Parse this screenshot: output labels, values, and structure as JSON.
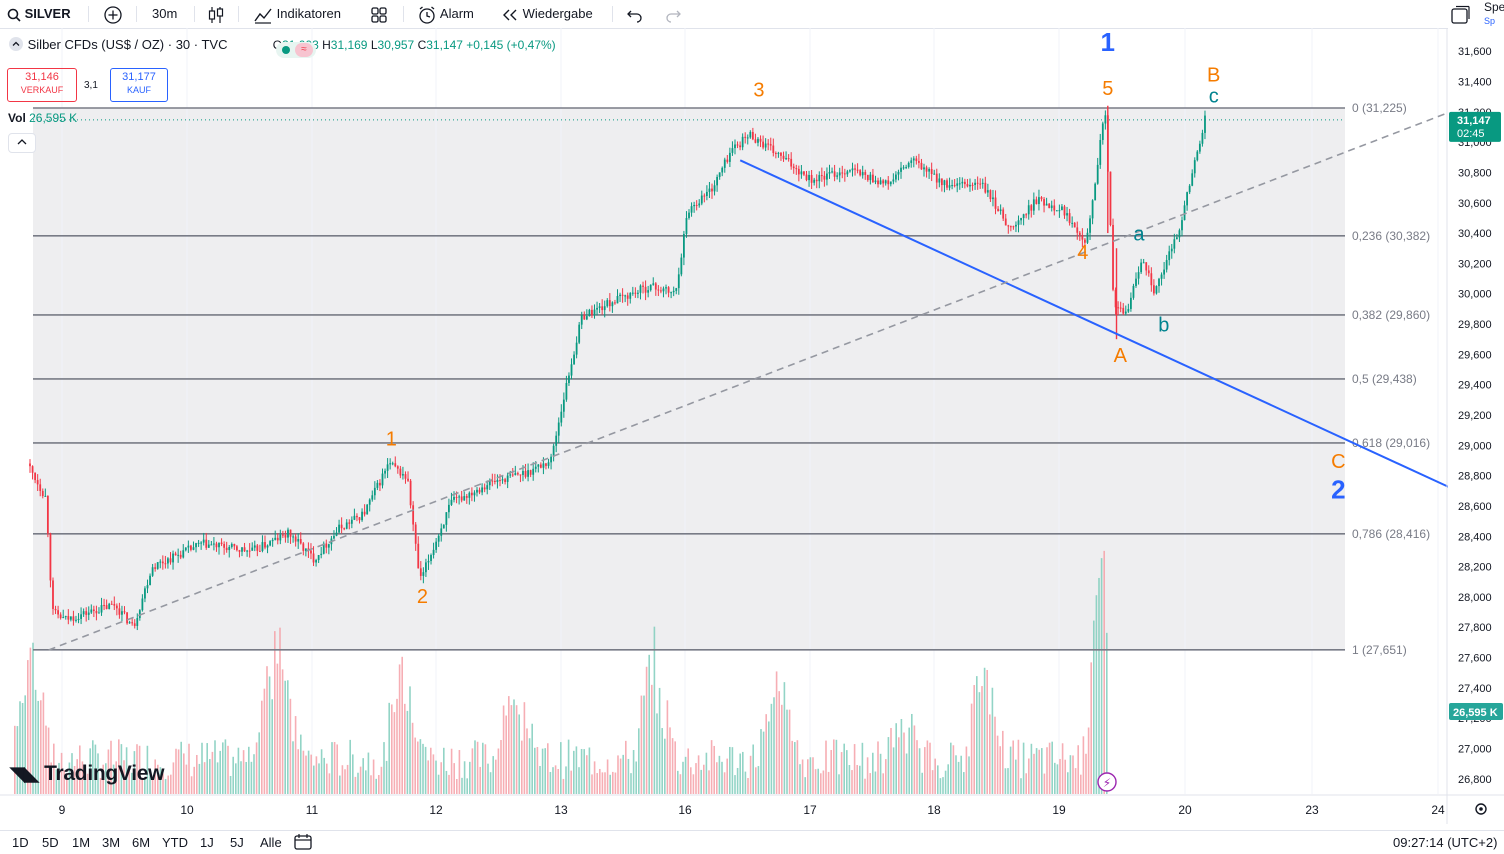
{
  "toolbar": {
    "symbol": "SILVER",
    "interval": "30m",
    "indicators": "Indikatoren",
    "alarm": "Alarm",
    "replay": "Wiedergabe",
    "right_label": "Spe",
    "right_sub": "Sp"
  },
  "legend": {
    "title": "Silber CFDs (US$ / OZ) · 30 · TVC",
    "o_key": "O",
    "o": "31,003",
    "h_key": "H",
    "h": "31,169",
    "l_key": "L",
    "l": "30,957",
    "c_key": "C",
    "c": "31,147",
    "change": "+0,145 (+0,47%)",
    "sell_price": "31,146",
    "sell_label": "VERKAUF",
    "spread": "3,1",
    "buy_price": "31,177",
    "buy_label": "KAUF",
    "vol_label": "Vol",
    "vol_value": "26,595 K"
  },
  "price_tag": {
    "price": "31,147",
    "countdown": "02:45"
  },
  "volume_tag": "26,595 K",
  "logo": "TradingView",
  "bottom": {
    "ranges": [
      "1D",
      "5D",
      "1M",
      "3M",
      "6M",
      "YTD",
      "1J",
      "5J",
      "Alle"
    ],
    "time": "09:27:14 (UTC+2)"
  },
  "chart_data": {
    "type": "candlestick",
    "symbol": "SILVER",
    "interval": "30m",
    "x_ticks": [
      "9",
      "10",
      "11",
      "12",
      "13",
      "16",
      "17",
      "18",
      "19",
      "20",
      "23",
      "24"
    ],
    "y_ticks": [
      "31,600",
      "31,400",
      "31,200",
      "31,000",
      "30,800",
      "30,600",
      "30,400",
      "30,200",
      "30,000",
      "29,800",
      "29,600",
      "29,400",
      "29,200",
      "29,000",
      "28,800",
      "28,600",
      "28,400",
      "28,200",
      "28,000",
      "27,800",
      "27,600",
      "27,400",
      "27,200",
      "27,000",
      "26,800"
    ],
    "ylim": [
      26.7,
      31.7
    ],
    "last_price": 31.147,
    "price_path": [
      [
        0,
        28.88
      ],
      [
        0.15,
        28.65
      ],
      [
        0.2,
        27.9
      ],
      [
        0.3,
        27.85
      ],
      [
        0.7,
        27.95
      ],
      [
        0.85,
        27.8
      ],
      [
        1.0,
        28.2
      ],
      [
        1.4,
        28.35
      ],
      [
        1.8,
        28.3
      ],
      [
        2.1,
        28.42
      ],
      [
        2.3,
        28.25
      ],
      [
        2.5,
        28.45
      ],
      [
        2.7,
        28.55
      ],
      [
        2.9,
        28.88
      ],
      [
        3.05,
        28.78
      ],
      [
        3.15,
        28.1
      ],
      [
        3.4,
        28.62
      ],
      [
        3.7,
        28.75
      ],
      [
        4.0,
        28.82
      ],
      [
        4.2,
        28.9
      ],
      [
        4.3,
        29.3
      ],
      [
        4.45,
        29.85
      ],
      [
        4.7,
        29.95
      ],
      [
        5.0,
        30.05
      ],
      [
        5.2,
        30.0
      ],
      [
        5.3,
        30.55
      ],
      [
        5.5,
        30.7
      ],
      [
        5.65,
        30.95
      ],
      [
        5.8,
        31.05
      ],
      [
        6.05,
        30.9
      ],
      [
        6.3,
        30.75
      ],
      [
        6.6,
        30.82
      ],
      [
        6.9,
        30.72
      ],
      [
        7.1,
        30.88
      ],
      [
        7.4,
        30.7
      ],
      [
        7.65,
        30.73
      ],
      [
        7.9,
        30.42
      ],
      [
        8.1,
        30.62
      ],
      [
        8.3,
        30.56
      ],
      [
        8.5,
        30.35
      ],
      [
        8.65,
        31.22
      ],
      [
        8.72,
        29.9
      ],
      [
        8.82,
        29.87
      ],
      [
        8.95,
        30.25
      ],
      [
        9.05,
        30.0
      ],
      [
        9.25,
        30.45
      ],
      [
        9.45,
        31.15
      ]
    ],
    "fib_levels": [
      {
        "ratio": "0",
        "price": 31.225,
        "label": "0 (31,225)"
      },
      {
        "ratio": "0,236",
        "price": 30.382,
        "label": "0,236 (30,382)"
      },
      {
        "ratio": "0,382",
        "price": 29.86,
        "label": "0,382 (29,860)"
      },
      {
        "ratio": "0,5",
        "price": 29.438,
        "label": "0,5 (29,438)"
      },
      {
        "ratio": "0,618",
        "price": 29.016,
        "label": "0,618 (29,016)"
      },
      {
        "ratio": "0,786",
        "price": 28.416,
        "label": "0,786 (28,416)"
      },
      {
        "ratio": "1",
        "price": 27.651,
        "label": "1 (27,651)"
      }
    ],
    "annotations": [
      {
        "text": "1",
        "color": "#2962ff",
        "x": 8.65,
        "price": 31.6,
        "big": true
      },
      {
        "text": "5",
        "color": "#f57c00",
        "x": 8.65,
        "price": 31.31
      },
      {
        "text": "B",
        "color": "#f57c00",
        "x": 9.5,
        "price": 31.4
      },
      {
        "text": "c",
        "color": "#00838f",
        "x": 9.5,
        "price": 31.26
      },
      {
        "text": "3",
        "color": "#f57c00",
        "x": 5.85,
        "price": 31.3
      },
      {
        "text": "1",
        "color": "#f57c00",
        "x": 2.9,
        "price": 29.0
      },
      {
        "text": "2",
        "color": "#f57c00",
        "x": 3.15,
        "price": 27.96
      },
      {
        "text": "4",
        "color": "#f57c00",
        "x": 8.45,
        "price": 30.23
      },
      {
        "text": "a",
        "color": "#00838f",
        "x": 8.9,
        "price": 30.35
      },
      {
        "text": "b",
        "color": "#00838f",
        "x": 9.1,
        "price": 29.75
      },
      {
        "text": "A",
        "color": "#f57c00",
        "x": 8.75,
        "price": 29.55
      },
      {
        "text": "C",
        "color": "#f57c00",
        "x": 10.5,
        "price": 28.85
      },
      {
        "text": "2",
        "color": "#2962ff",
        "x": 10.5,
        "price": 28.65,
        "big": true
      }
    ],
    "trendlines": [
      {
        "style": "solid",
        "color": "#2962ff",
        "from": [
          5.7,
          30.88
        ],
        "to": [
          11.4,
          28.72
        ]
      },
      {
        "style": "dashed",
        "color": "#9598a1",
        "from": [
          0.15,
          27.65
        ],
        "to": [
          11.4,
          31.2
        ]
      }
    ],
    "colors": {
      "up": "#089981",
      "down": "#f23645",
      "fib": "#787b86",
      "shade": "#ececee"
    }
  }
}
